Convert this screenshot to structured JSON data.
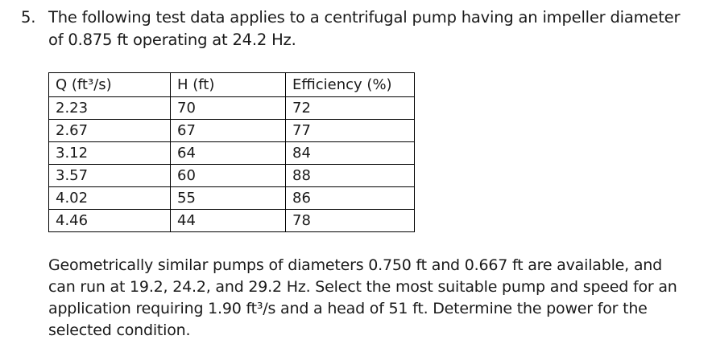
{
  "problem": {
    "number": "5.",
    "intro": "The following test data applies to a centrifugal pump having an impeller diameter of 0.875 ft operating at 24.2 Hz.",
    "table": {
      "headers": [
        "Q (ft³/s)",
        "H (ft)",
        "Efficiency (%)"
      ],
      "rows": [
        [
          "2.23",
          "70",
          "72"
        ],
        [
          "2.67",
          "67",
          "77"
        ],
        [
          "3.12",
          "64",
          "84"
        ],
        [
          "3.57",
          "60",
          "88"
        ],
        [
          "4.02",
          "55",
          "86"
        ],
        [
          "4.46",
          "44",
          "78"
        ]
      ]
    },
    "question": "Geometrically similar pumps of diameters 0.750 ft and 0.667 ft are available, and can run at 19.2, 24.2, and 29.2 Hz. Select the most suitable pump and speed for an application requiring 1.90 ft³/s and a head of 51 ft. Determine the power for the selected condition."
  }
}
